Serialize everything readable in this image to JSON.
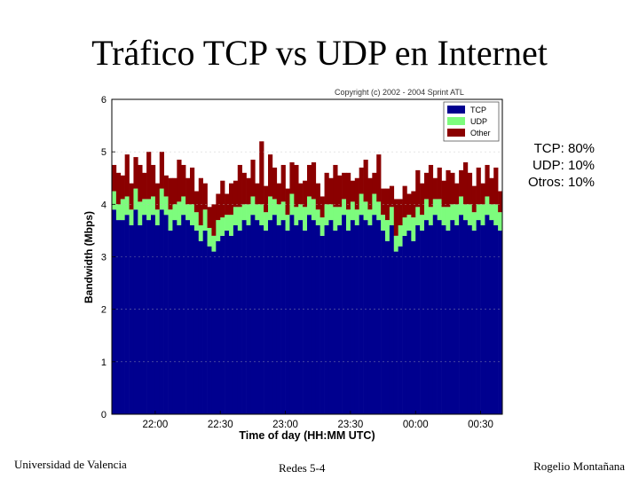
{
  "slide": {
    "title": "Tráfico TCP vs UDP en Internet",
    "footer_left": "Universidad de Valencia",
    "footer_center": "Redes 5-4",
    "footer_right": "Rogelio Montañana"
  },
  "stats": [
    "TCP: 80%",
    "UDP: 10%",
    "Otros: 10%"
  ],
  "colors": {
    "tcp": "#00008f",
    "udp": "#7dfc7d",
    "other": "#8b0000"
  },
  "chart_data": {
    "type": "bar",
    "stacked": true,
    "title": "Copyright (c) 2002 - 2004 Sprint ATL",
    "xlabel": "Time of day (HH:MM UTC)",
    "ylabel": "Bandwidth (Mbps)",
    "ylim": [
      0,
      6
    ],
    "yticks": [
      0,
      1,
      2,
      3,
      4,
      5,
      6
    ],
    "xrange_min": [
      0,
      90
    ],
    "xticks": [
      {
        "label": "22:00",
        "min": 10
      },
      {
        "label": "22:30",
        "min": 25
      },
      {
        "label": "23:00",
        "min": 40
      },
      {
        "label": "23:30",
        "min": 55
      },
      {
        "label": "00:00",
        "min": 70
      },
      {
        "label": "00:30",
        "min": 85
      }
    ],
    "legend": [
      "TCP",
      "UDP",
      "Other"
    ],
    "legend_position": "top-right",
    "series": [
      {
        "name": "TCP",
        "values": [
          3.9,
          3.7,
          3.7,
          3.8,
          3.6,
          3.9,
          3.6,
          3.8,
          3.7,
          3.8,
          3.6,
          3.9,
          3.8,
          3.5,
          3.7,
          3.6,
          3.8,
          3.7,
          3.6,
          3.5,
          3.3,
          3.5,
          3.2,
          3.1,
          3.3,
          3.4,
          3.5,
          3.4,
          3.6,
          3.5,
          3.7,
          3.6,
          3.8,
          3.7,
          3.6,
          3.5,
          3.7,
          3.8,
          3.6,
          3.7,
          3.5,
          3.8,
          3.6,
          3.7,
          3.5,
          3.8,
          3.7,
          3.6,
          3.4,
          3.6,
          3.7,
          3.5,
          3.6,
          3.8,
          3.5,
          3.7,
          3.6,
          3.8,
          3.7,
          3.6,
          3.8,
          3.7,
          3.5,
          3.3,
          3.6,
          3.1,
          3.2,
          3.4,
          3.5,
          3.3,
          3.6,
          3.5,
          3.7,
          3.6,
          3.8,
          3.7,
          3.6,
          3.5,
          3.7,
          3.6,
          3.8,
          3.7,
          3.6,
          3.5,
          3.7,
          3.6,
          3.8,
          3.7,
          3.6,
          3.5
        ]
      },
      {
        "name": "UDP",
        "values": [
          0.35,
          0.3,
          0.4,
          0.35,
          0.3,
          0.4,
          0.45,
          0.3,
          0.4,
          0.35,
          0.3,
          0.4,
          0.35,
          0.4,
          0.3,
          0.45,
          0.35,
          0.3,
          0.4,
          0.35,
          0.3,
          0.4,
          0.35,
          0.3,
          0.4,
          0.35,
          0.3,
          0.4,
          0.35,
          0.45,
          0.3,
          0.4,
          0.35,
          0.3,
          0.4,
          0.35,
          0.45,
          0.3,
          0.4,
          0.35,
          0.3,
          0.4,
          0.35,
          0.3,
          0.45,
          0.35,
          0.4,
          0.3,
          0.35,
          0.4,
          0.3,
          0.45,
          0.35,
          0.3,
          0.4,
          0.35,
          0.3,
          0.4,
          0.35,
          0.3,
          0.4,
          0.35,
          0.3,
          0.4,
          0.35,
          0.3,
          0.4,
          0.35,
          0.3,
          0.45,
          0.35,
          0.3,
          0.4,
          0.35,
          0.3,
          0.4,
          0.35,
          0.45,
          0.3,
          0.4,
          0.35,
          0.3,
          0.4,
          0.35,
          0.3,
          0.4,
          0.35,
          0.3,
          0.4,
          0.35
        ]
      },
      {
        "name": "Other",
        "values": [
          0.5,
          0.6,
          0.45,
          0.8,
          0.5,
          0.6,
          0.7,
          0.5,
          0.9,
          0.6,
          0.5,
          0.7,
          0.4,
          0.6,
          0.5,
          0.8,
          0.6,
          0.5,
          0.7,
          0.4,
          0.9,
          0.5,
          0.4,
          0.6,
          0.5,
          0.7,
          0.4,
          0.6,
          0.5,
          0.8,
          0.6,
          0.5,
          0.7,
          0.4,
          1.2,
          0.5,
          0.8,
          0.6,
          0.4,
          0.7,
          0.5,
          0.6,
          0.8,
          0.4,
          0.5,
          0.6,
          0.7,
          0.5,
          0.4,
          0.6,
          0.5,
          0.8,
          0.6,
          0.5,
          0.7,
          0.4,
          0.6,
          0.5,
          0.8,
          0.6,
          0.4,
          0.9,
          0.5,
          0.6,
          0.4,
          0.7,
          0.5,
          0.6,
          0.4,
          0.5,
          0.7,
          0.6,
          0.5,
          0.8,
          0.4,
          0.6,
          0.5,
          0.7,
          0.6,
          0.4,
          0.5,
          0.8,
          0.6,
          0.5,
          0.7,
          0.4,
          0.6,
          0.5,
          0.7,
          0.4
        ]
      }
    ]
  }
}
